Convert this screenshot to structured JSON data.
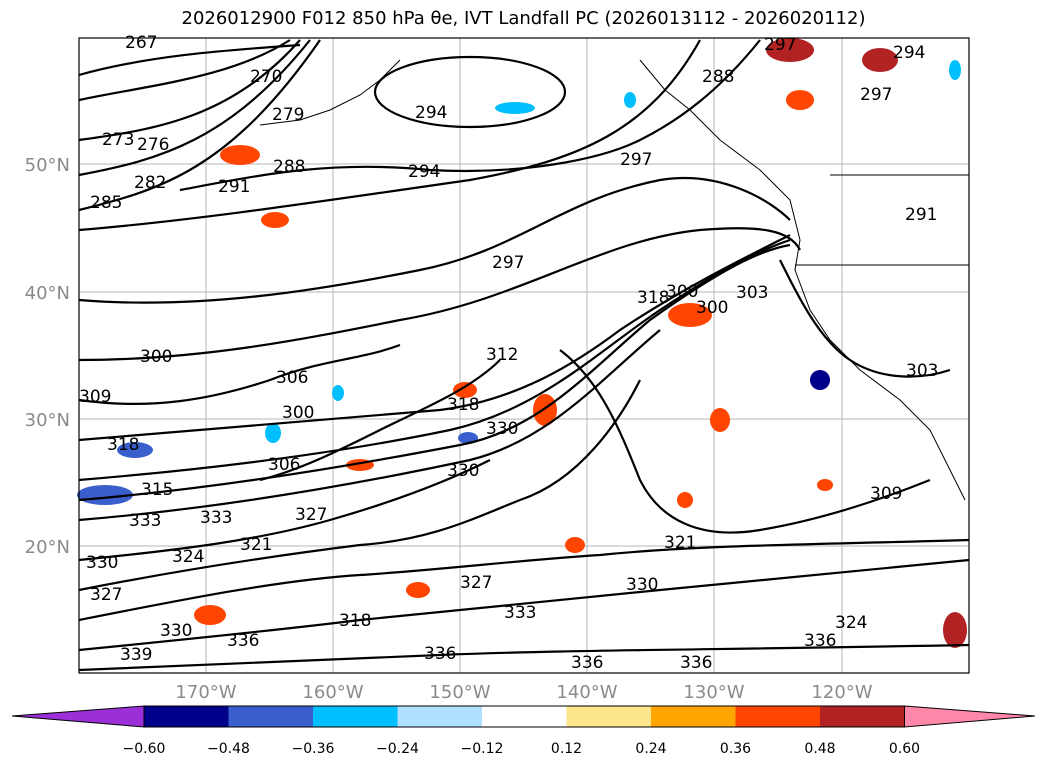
{
  "title": "2026012900 F012 850 hPa θe, IVT Landfall PC (2026013112 - 2026020112)",
  "map": {
    "lon_range": [
      -180,
      -110
    ],
    "lat_range": [
      10,
      60
    ],
    "lat_labels": [
      "20°N",
      "30°N",
      "40°N",
      "50°N"
    ],
    "lon_labels": [
      "170°W",
      "160°W",
      "150°W",
      "140°W",
      "130°W",
      "120°W"
    ],
    "contour_labels": [
      "267",
      "270",
      "273",
      "276",
      "279",
      "282",
      "285",
      "288",
      "291",
      "294",
      "294",
      "288",
      "297",
      "294",
      "297",
      "291",
      "297",
      "300",
      "300",
      "306",
      "300",
      "303",
      "306",
      "309",
      "312",
      "315",
      "318",
      "318",
      "318",
      "330",
      "330",
      "333",
      "333",
      "327",
      "321",
      "324",
      "321",
      "330",
      "327",
      "327",
      "318",
      "330",
      "333",
      "336",
      "339",
      "336",
      "336",
      "336",
      "336",
      "324",
      "303",
      "309",
      "330",
      "297",
      "300"
    ]
  },
  "colorbar": {
    "ticks": [
      "−0.60",
      "−0.48",
      "−0.36",
      "−0.24",
      "−0.12",
      "0.12",
      "0.24",
      "0.36",
      "0.48",
      "0.60"
    ],
    "colors": [
      "#9b30d9",
      "#00008b",
      "#3a5fcd",
      "#00bfff",
      "#b0e0ff",
      "#ffffff",
      "#fce58a",
      "#ffa500",
      "#ff4500",
      "#b22222",
      "#ff88aa"
    ]
  }
}
